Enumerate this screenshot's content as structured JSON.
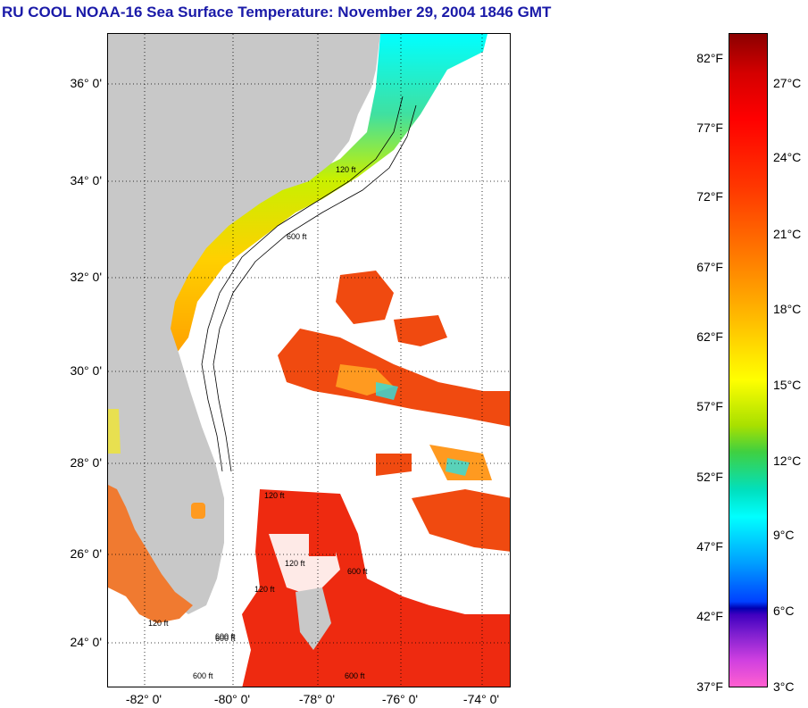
{
  "title": "RU COOL  NOAA-16  Sea Surface Temperature:  November 29, 2004 1846 GMT",
  "map": {
    "lat_ticks": [
      "36° 0'",
      "34° 0'",
      "32° 0'",
      "30° 0'",
      "28° 0'",
      "26° 0'",
      "24° 0'"
    ],
    "lon_ticks": [
      "-82° 0'",
      "-80° 0'",
      "-78° 0'",
      "-76° 0'",
      "-74° 0'"
    ],
    "contour_labels": [
      "120 ft",
      "600 ft",
      "120 ft",
      "600 ft",
      "120 ft",
      "600 ft",
      "120 ft",
      "600 ft",
      "120 ft",
      "600 ft",
      "600 ft"
    ],
    "colors": {
      "land": "#c8c8c8",
      "cloud": "#ffffff",
      "warm": "#ff3a00",
      "cool": "#00e8ff"
    }
  },
  "colorbar": {
    "fahrenheit": [
      "82°F",
      "77°F",
      "72°F",
      "67°F",
      "62°F",
      "57°F",
      "52°F",
      "47°F",
      "42°F",
      "37°F"
    ],
    "celsius": [
      "27°C",
      "24°C",
      "21°C",
      "18°C",
      "15°C",
      "12°C",
      "9°C",
      "6°C",
      "3°C"
    ]
  }
}
